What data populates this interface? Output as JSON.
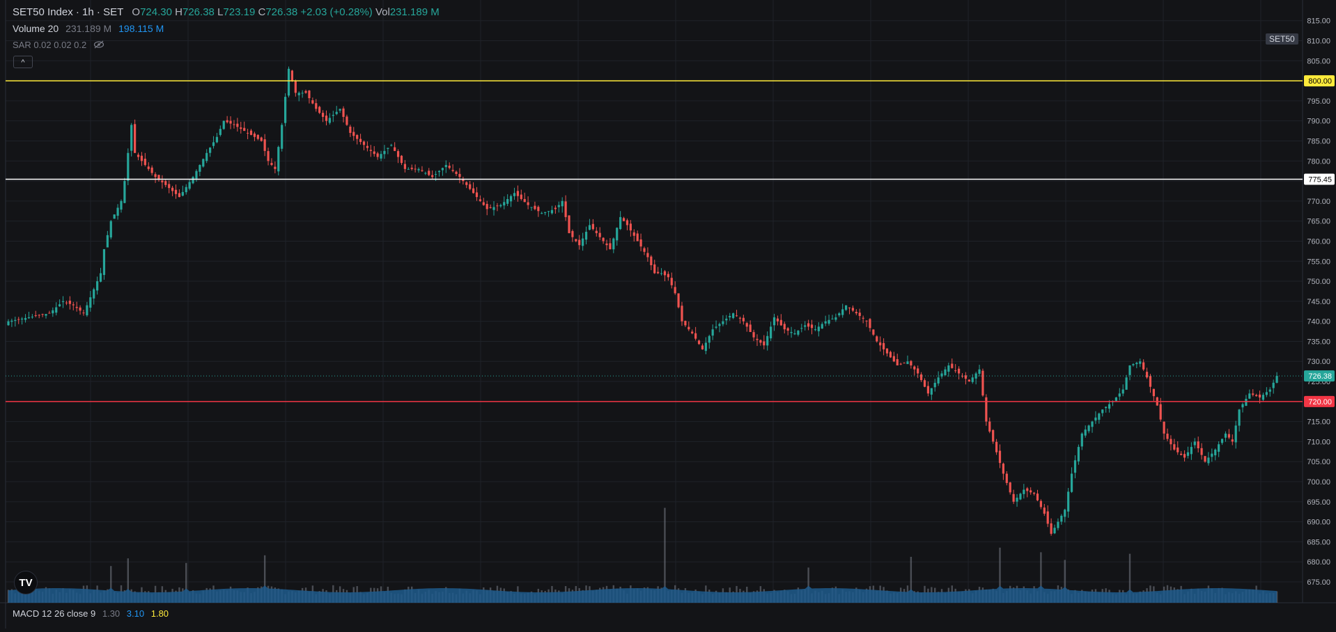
{
  "legend": {
    "title": "SET50 Index · 1h · SET",
    "o_label": "O",
    "o_value": "724.30",
    "h_label": "H",
    "h_value": "726.38",
    "l_label": "L",
    "l_value": "723.19",
    "c_label": "C",
    "c_value": "726.38",
    "change": "+2.03 (+0.28%)",
    "vol_label": "Vol",
    "vol_value": "231.189 M",
    "volume_study": "Volume 20",
    "volume_value": "231.189 M",
    "volume_ma": "198.115 M",
    "sar_study": "SAR 0.02 0.02 0.2",
    "macd_study": "MACD 12 26 close 9",
    "macd_v1": "1.30",
    "macd_v2": "3.10",
    "macd_v3": "1.80"
  },
  "symbol_tag": "SET50",
  "collapse_button": "^",
  "logo_text": "TV",
  "chart_data": {
    "type": "candlestick",
    "y_range": [
      671,
      818
    ],
    "y_ticks": [
      "815.00",
      "810.00",
      "805.00",
      "800.00",
      "795.00",
      "790.00",
      "785.00",
      "780.00",
      "775.00",
      "770.00",
      "765.00",
      "760.00",
      "755.00",
      "750.00",
      "745.00",
      "740.00",
      "735.00",
      "730.00",
      "725.00",
      "720.00",
      "715.00",
      "710.00",
      "705.00",
      "700.00",
      "695.00",
      "690.00",
      "685.00",
      "680.00",
      "675.00"
    ],
    "colors": {
      "up": "#26a69a",
      "down": "#ef5350",
      "volume": "#2962ff",
      "volume_area": "#1e5a8c",
      "grid": "#1f2229",
      "axis_text": "#b2b5be"
    },
    "price_lines": [
      {
        "value": 800.0,
        "label": "800.00",
        "color": "#ffeb3b",
        "text_color": "#000000"
      },
      {
        "value": 775.45,
        "label": "775.45",
        "color": "#ffffff",
        "text_color": "#000000"
      },
      {
        "value": 720.0,
        "label": "720.00",
        "color": "#f23645",
        "text_color": "#ffffff"
      }
    ],
    "last_price": {
      "value": 726.38,
      "label": "726.38",
      "color": "#26a69a"
    },
    "close_path": [
      [
        0,
        740
      ],
      [
        12,
        742
      ],
      [
        16,
        745
      ],
      [
        19,
        744
      ],
      [
        22,
        742
      ],
      [
        25,
        748
      ],
      [
        27,
        752
      ],
      [
        28,
        758
      ],
      [
        30,
        765
      ],
      [
        33,
        770
      ],
      [
        34,
        775
      ],
      [
        36,
        789
      ],
      [
        37,
        782
      ],
      [
        40,
        779
      ],
      [
        43,
        776
      ],
      [
        46,
        774
      ],
      [
        50,
        771
      ],
      [
        54,
        776
      ],
      [
        58,
        782
      ],
      [
        61,
        786
      ],
      [
        63,
        790
      ],
      [
        66,
        789
      ],
      [
        70,
        787
      ],
      [
        74,
        785
      ],
      [
        76,
        780
      ],
      [
        78,
        778
      ],
      [
        80,
        789
      ],
      [
        82,
        803
      ],
      [
        84,
        797
      ],
      [
        87,
        797
      ],
      [
        90,
        793
      ],
      [
        93,
        790
      ],
      [
        97,
        793
      ],
      [
        100,
        787
      ],
      [
        104,
        784
      ],
      [
        108,
        781
      ],
      [
        112,
        784
      ],
      [
        116,
        778
      ],
      [
        120,
        778
      ],
      [
        124,
        776
      ],
      [
        128,
        779
      ],
      [
        132,
        776
      ],
      [
        134,
        774
      ],
      [
        137,
        771
      ],
      [
        140,
        768
      ],
      [
        144,
        769
      ],
      [
        148,
        772
      ],
      [
        152,
        769
      ],
      [
        156,
        767
      ],
      [
        160,
        768
      ],
      [
        162,
        770
      ],
      [
        164,
        762
      ],
      [
        167,
        759
      ],
      [
        170,
        764
      ],
      [
        173,
        761
      ],
      [
        176,
        758
      ],
      [
        179,
        766
      ],
      [
        181,
        764
      ],
      [
        184,
        760
      ],
      [
        187,
        756
      ],
      [
        189,
        752
      ],
      [
        191,
        752
      ],
      [
        193,
        751
      ],
      [
        195,
        747
      ],
      [
        197,
        740
      ],
      [
        200,
        737
      ],
      [
        203,
        733
      ],
      [
        206,
        738
      ],
      [
        209,
        740
      ],
      [
        212,
        742
      ],
      [
        215,
        740
      ],
      [
        218,
        736
      ],
      [
        221,
        734
      ],
      [
        224,
        741
      ],
      [
        227,
        738
      ],
      [
        230,
        737
      ],
      [
        233,
        739
      ],
      [
        236,
        738
      ],
      [
        239,
        740
      ],
      [
        242,
        741
      ],
      [
        245,
        744
      ],
      [
        248,
        742
      ],
      [
        251,
        740
      ],
      [
        254,
        735
      ],
      [
        257,
        732
      ],
      [
        260,
        729
      ],
      [
        263,
        730
      ],
      [
        266,
        727
      ],
      [
        269,
        722
      ],
      [
        272,
        726
      ],
      [
        275,
        729
      ],
      [
        278,
        727
      ],
      [
        281,
        725
      ],
      [
        284,
        728
      ],
      [
        286,
        715
      ],
      [
        288,
        710
      ],
      [
        291,
        702
      ],
      [
        294,
        695
      ],
      [
        297,
        698
      ],
      [
        300,
        697
      ],
      [
        303,
        692
      ],
      [
        305,
        687
      ],
      [
        307,
        690
      ],
      [
        309,
        693
      ],
      [
        311,
        702
      ],
      [
        314,
        712
      ],
      [
        317,
        715
      ],
      [
        320,
        718
      ],
      [
        323,
        720
      ],
      [
        326,
        723
      ],
      [
        328,
        729
      ],
      [
        331,
        730
      ],
      [
        333,
        726
      ],
      [
        336,
        719
      ],
      [
        338,
        712
      ],
      [
        341,
        708
      ],
      [
        344,
        706
      ],
      [
        347,
        710
      ],
      [
        350,
        705
      ],
      [
        353,
        708
      ],
      [
        356,
        712
      ],
      [
        358,
        710
      ],
      [
        360,
        718
      ],
      [
        363,
        722
      ],
      [
        366,
        721
      ],
      [
        369,
        723
      ],
      [
        371,
        726.38
      ]
    ],
    "total_bars": 372,
    "spikes": [
      [
        75,
        3.1
      ],
      [
        192,
        6.2
      ],
      [
        234,
        2.3
      ],
      [
        290,
        3.6
      ],
      [
        302,
        3.3
      ],
      [
        264,
        3.0
      ],
      [
        309,
        2.8
      ],
      [
        328,
        3.2
      ],
      [
        30,
        2.4
      ],
      [
        52,
        2.6
      ],
      [
        35,
        2.9
      ],
      [
        52,
        2.6
      ]
    ]
  }
}
